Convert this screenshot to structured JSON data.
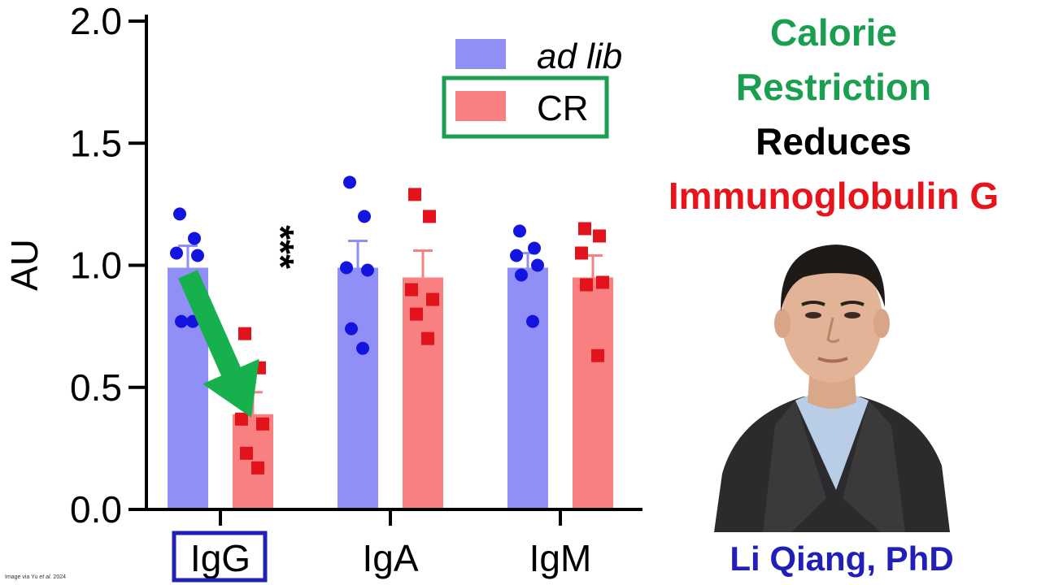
{
  "chart_data": {
    "type": "bar",
    "title": "",
    "xlabel": "",
    "ylabel": "AU",
    "ylim": [
      0,
      2.0
    ],
    "yticks": [
      "0.0",
      "0.5",
      "1.0",
      "1.5",
      "2.0"
    ],
    "categories": [
      "IgG",
      "IgA",
      "IgM"
    ],
    "series": [
      {
        "name": "ad lib",
        "color": "#8f8ff7",
        "point_color": "#1414e0",
        "values": [
          0.99,
          0.99,
          0.99
        ],
        "errors": [
          0.09,
          0.11,
          0.06
        ],
        "points": [
          [
            1.21,
            1.11,
            1.05,
            1.04,
            0.77,
            0.77
          ],
          [
            1.34,
            1.2,
            0.99,
            0.98,
            0.74,
            0.66
          ],
          [
            1.14,
            1.07,
            1.04,
            1.0,
            0.96,
            0.77
          ]
        ]
      },
      {
        "name": "CR",
        "color": "#f98080",
        "point_color": "#e3131b",
        "values": [
          0.39,
          0.95,
          0.95
        ],
        "errors": [
          0.09,
          0.11,
          0.09
        ],
        "points": [
          [
            0.72,
            0.58,
            0.37,
            0.35,
            0.23,
            0.17
          ],
          [
            1.29,
            1.2,
            0.9,
            0.86,
            0.8,
            0.7
          ],
          [
            1.15,
            1.12,
            1.05,
            0.93,
            0.92,
            0.63
          ]
        ]
      }
    ],
    "significance": [
      {
        "category": "IgG",
        "label": "***"
      }
    ],
    "legend_position": "top-center",
    "highlight": {
      "legend_box_series": "CR",
      "category_box": "IgG",
      "box_color": "#1a9e4f",
      "category_box_color": "#2020b8"
    },
    "arrow": {
      "from_series": "ad lib",
      "to_series": "CR",
      "category": "IgG",
      "color": "#16b04c"
    }
  },
  "headline": {
    "line1": "Calorie",
    "line2": "Restriction",
    "line3": "Reduces",
    "line4": "Immunoglobulin G"
  },
  "person": {
    "name": "Li Qiang, PhD"
  },
  "credit": {
    "prefix": "Image via ",
    "author": "Yu",
    "etal": " et al.",
    "year": " 2024"
  }
}
